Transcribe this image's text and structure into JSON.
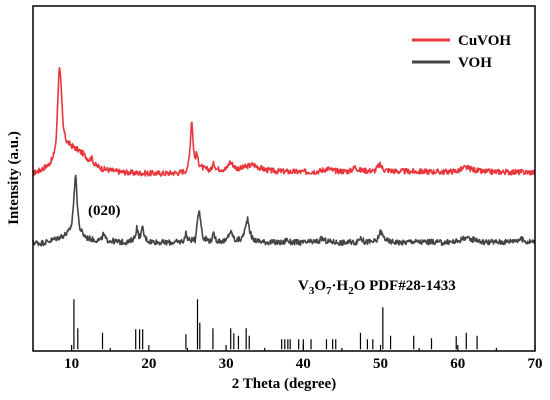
{
  "chart_data": {
    "type": "line",
    "title": "",
    "xlabel": "2 Theta (degree)",
    "ylabel": "Intensity (a.u.)",
    "xlim": [
      5,
      70
    ],
    "xticks": [
      10,
      20,
      30,
      40,
      50,
      60,
      70
    ],
    "y_ticks_shown": false,
    "grid": false,
    "legend_position": "top-right",
    "annotations": [
      {
        "text": "(020)",
        "x": 10.5,
        "series": "VOH"
      }
    ],
    "series": [
      {
        "name": "CuVOH",
        "color": "#e8363c",
        "baseline": 0.5,
        "noise": 0.008,
        "points": [
          [
            5,
            0.515
          ],
          [
            6,
            0.525
          ],
          [
            7,
            0.54
          ],
          [
            7.6,
            0.56
          ],
          [
            8,
            0.61
          ],
          [
            8.3,
            0.78
          ],
          [
            8.45,
            0.835
          ],
          [
            8.6,
            0.78
          ],
          [
            8.9,
            0.65
          ],
          [
            9.3,
            0.61
          ],
          [
            10,
            0.595
          ],
          [
            10.7,
            0.585
          ],
          [
            11.5,
            0.572
          ],
          [
            12.2,
            0.555
          ],
          [
            12.6,
            0.56
          ],
          [
            13,
            0.54
          ],
          [
            14,
            0.528
          ],
          [
            16,
            0.52
          ],
          [
            18,
            0.516
          ],
          [
            20,
            0.515
          ],
          [
            22,
            0.515
          ],
          [
            24,
            0.517
          ],
          [
            25,
            0.525
          ],
          [
            25.35,
            0.595
          ],
          [
            25.55,
            0.68
          ],
          [
            25.75,
            0.6
          ],
          [
            25.95,
            0.555
          ],
          [
            26.2,
            0.575
          ],
          [
            26.45,
            0.545
          ],
          [
            27,
            0.53
          ],
          [
            28,
            0.525
          ],
          [
            28.4,
            0.543
          ],
          [
            28.8,
            0.528
          ],
          [
            30,
            0.527
          ],
          [
            30.5,
            0.548
          ],
          [
            30.9,
            0.54
          ],
          [
            31.3,
            0.53
          ],
          [
            32,
            0.53
          ],
          [
            32.8,
            0.536
          ],
          [
            33.5,
            0.54
          ],
          [
            34.2,
            0.533
          ],
          [
            35,
            0.526
          ],
          [
            36,
            0.522
          ],
          [
            38,
            0.52
          ],
          [
            40,
            0.519
          ],
          [
            42,
            0.521
          ],
          [
            43.2,
            0.529
          ],
          [
            44,
            0.522
          ],
          [
            46,
            0.521
          ],
          [
            46.7,
            0.533
          ],
          [
            47.3,
            0.524
          ],
          [
            49.2,
            0.522
          ],
          [
            49.9,
            0.54
          ],
          [
            50.5,
            0.525
          ],
          [
            52,
            0.521
          ],
          [
            55,
            0.52
          ],
          [
            57,
            0.52
          ],
          [
            58,
            0.519
          ],
          [
            60,
            0.522
          ],
          [
            61,
            0.532
          ],
          [
            61.8,
            0.527
          ],
          [
            63,
            0.52
          ],
          [
            66,
            0.519
          ],
          [
            70,
            0.518
          ]
        ]
      },
      {
        "name": "VOH",
        "color": "#444444",
        "baseline": 0.3,
        "noise": 0.008,
        "points": [
          [
            5,
            0.315
          ],
          [
            6,
            0.312
          ],
          [
            7,
            0.318
          ],
          [
            8,
            0.326
          ],
          [
            9,
            0.335
          ],
          [
            9.6,
            0.345
          ],
          [
            10,
            0.365
          ],
          [
            10.3,
            0.44
          ],
          [
            10.5,
            0.525
          ],
          [
            10.7,
            0.44
          ],
          [
            11,
            0.36
          ],
          [
            11.5,
            0.338
          ],
          [
            12,
            0.328
          ],
          [
            13,
            0.322
          ],
          [
            13.8,
            0.322
          ],
          [
            14.1,
            0.338
          ],
          [
            14.5,
            0.322
          ],
          [
            16,
            0.316
          ],
          [
            17.5,
            0.316
          ],
          [
            18.2,
            0.33
          ],
          [
            18.45,
            0.36
          ],
          [
            18.7,
            0.33
          ],
          [
            19,
            0.34
          ],
          [
            19.2,
            0.358
          ],
          [
            19.45,
            0.33
          ],
          [
            20,
            0.318
          ],
          [
            22,
            0.314
          ],
          [
            24,
            0.316
          ],
          [
            24.6,
            0.322
          ],
          [
            24.8,
            0.345
          ],
          [
            25.05,
            0.322
          ],
          [
            26,
            0.322
          ],
          [
            26.3,
            0.385
          ],
          [
            26.5,
            0.41
          ],
          [
            26.75,
            0.37
          ],
          [
            27,
            0.33
          ],
          [
            28,
            0.318
          ],
          [
            28.4,
            0.338
          ],
          [
            28.8,
            0.32
          ],
          [
            30,
            0.318
          ],
          [
            30.5,
            0.345
          ],
          [
            30.8,
            0.34
          ],
          [
            31.1,
            0.322
          ],
          [
            32,
            0.324
          ],
          [
            32.5,
            0.355
          ],
          [
            32.8,
            0.387
          ],
          [
            33.1,
            0.345
          ],
          [
            33.5,
            0.322
          ],
          [
            35,
            0.316
          ],
          [
            37.5,
            0.314
          ],
          [
            37.8,
            0.325
          ],
          [
            38.2,
            0.316
          ],
          [
            40,
            0.314
          ],
          [
            42,
            0.318
          ],
          [
            42.4,
            0.326
          ],
          [
            43,
            0.318
          ],
          [
            45,
            0.314
          ],
          [
            47,
            0.316
          ],
          [
            47.4,
            0.33
          ],
          [
            47.9,
            0.316
          ],
          [
            49.5,
            0.318
          ],
          [
            50,
            0.348
          ],
          [
            50.4,
            0.33
          ],
          [
            51,
            0.318
          ],
          [
            53,
            0.314
          ],
          [
            54,
            0.318
          ],
          [
            55,
            0.316
          ],
          [
            57,
            0.316
          ],
          [
            58,
            0.314
          ],
          [
            60,
            0.318
          ],
          [
            61,
            0.33
          ],
          [
            61.5,
            0.322
          ],
          [
            62.3,
            0.325
          ],
          [
            63,
            0.316
          ],
          [
            66,
            0.316
          ],
          [
            68.2,
            0.324
          ],
          [
            69,
            0.316
          ],
          [
            70,
            0.318
          ]
        ]
      },
      {
        "name": "V3O7·H2O PDF#28-1433",
        "type": "reference-sticks",
        "color": "#000000",
        "sticks": [
          [
            10.3,
            1.0
          ],
          [
            10.8,
            0.42
          ],
          [
            14.0,
            0.33
          ],
          [
            18.3,
            0.4
          ],
          [
            18.8,
            0.4
          ],
          [
            19.2,
            0.4
          ],
          [
            24.8,
            0.3
          ],
          [
            26.3,
            1.0
          ],
          [
            26.6,
            0.53
          ],
          [
            28.3,
            0.42
          ],
          [
            30.6,
            0.42
          ],
          [
            31.0,
            0.32
          ],
          [
            31.6,
            0.27
          ],
          [
            32.6,
            0.42
          ],
          [
            33.0,
            0.27
          ],
          [
            37.2,
            0.2
          ],
          [
            37.6,
            0.2
          ],
          [
            38.0,
            0.2
          ],
          [
            38.3,
            0.2
          ],
          [
            39.4,
            0.2
          ],
          [
            40.0,
            0.2
          ],
          [
            41.0,
            0.2
          ],
          [
            43.0,
            0.2
          ],
          [
            43.8,
            0.2
          ],
          [
            44.2,
            0.2
          ],
          [
            47.4,
            0.33
          ],
          [
            48.3,
            0.2
          ],
          [
            49.0,
            0.2
          ],
          [
            50.3,
            0.84
          ],
          [
            51.3,
            0.27
          ],
          [
            54.3,
            0.27
          ],
          [
            56.6,
            0.22
          ],
          [
            59.8,
            0.26
          ],
          [
            61.1,
            0.33
          ],
          [
            62.5,
            0.27
          ]
        ]
      }
    ]
  }
}
